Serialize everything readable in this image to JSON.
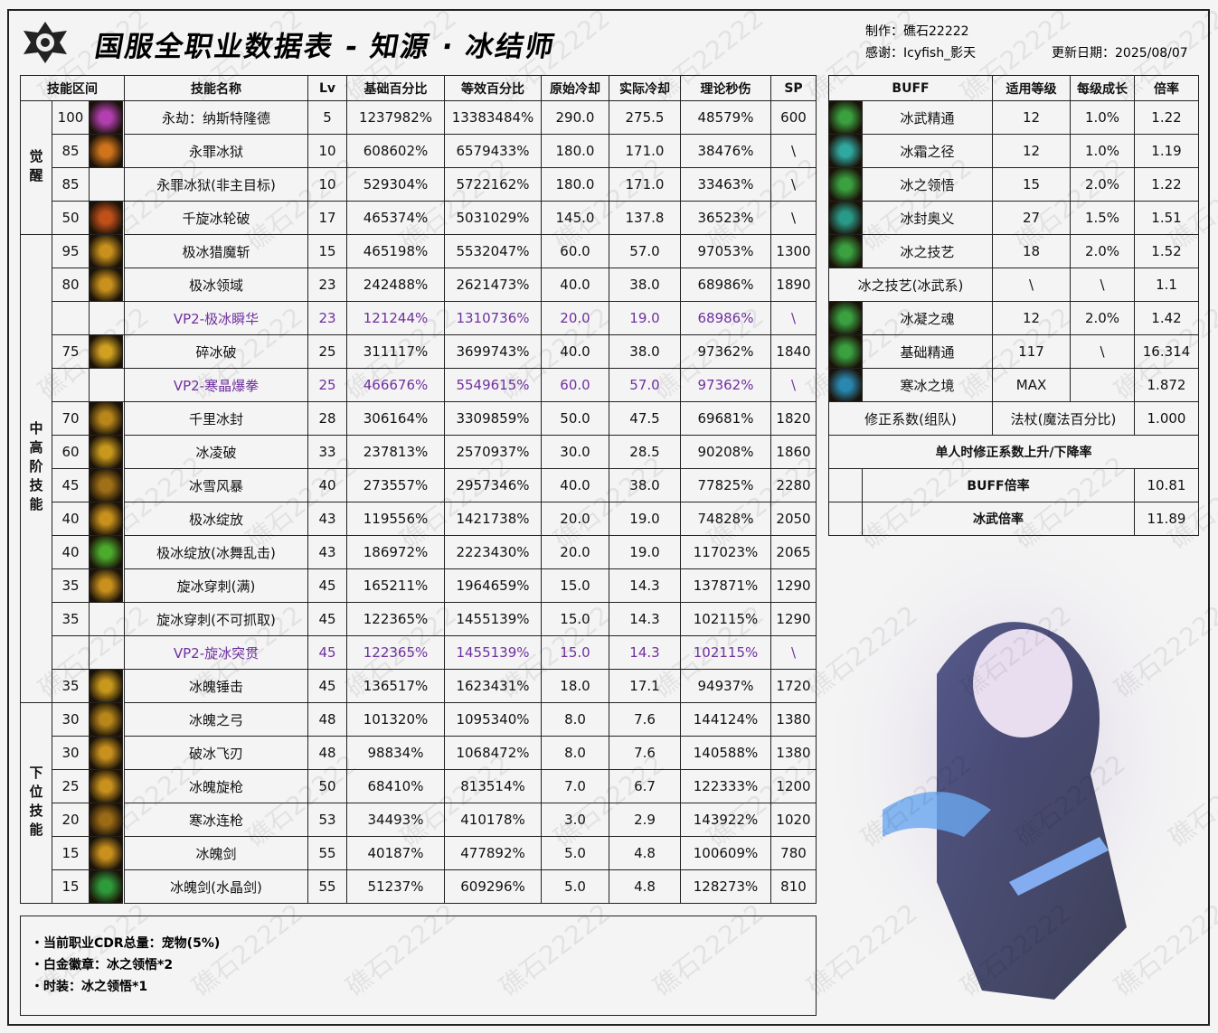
{
  "header": {
    "title": "国服全职业数据表 - 知源 · 冰结师",
    "author": "制作：礁石22222",
    "thanks": "感谢：Icyfish_影天",
    "date": "更新日期：2025/08/07"
  },
  "watermark": "礁石22222",
  "main_table": {
    "headers": [
      "技能区间",
      "技能名称",
      "Lv",
      "基础百分比",
      "等效百分比",
      "原始冷却",
      "实际冷却",
      "理论秒伤",
      "SP"
    ],
    "groups": [
      {
        "label": "觉醒",
        "rows": [
          {
            "cells": [
              "100",
              "永劫：纳斯特隆德",
              "5",
              "1237982%",
              "13383484%",
              "290.0",
              "275.5",
              "48579%",
              "600"
            ],
            "icon": "#b23fb0"
          },
          {
            "cells": [
              "85",
              "永罪冰狱",
              "10",
              "608602%",
              "6579433%",
              "180.0",
              "171.0",
              "38476%",
              "\\"
            ],
            "icon": "#d0741c"
          },
          {
            "cells": [
              "85",
              "永罪冰狱(非主目标)",
              "10",
              "529304%",
              "5722162%",
              "180.0",
              "171.0",
              "33463%",
              "\\"
            ]
          },
          {
            "cells": [
              "50",
              "千旋冰轮破",
              "17",
              "465374%",
              "5031029%",
              "145.0",
              "137.8",
              "36523%",
              "\\"
            ],
            "icon": "#c0501a"
          }
        ]
      },
      {
        "label": "中高阶技能",
        "rows": [
          {
            "cells": [
              "95",
              "极冰猎魔斩",
              "15",
              "465198%",
              "5532047%",
              "60.0",
              "57.0",
              "97053%",
              "1300"
            ],
            "icon": "#c8901c"
          },
          {
            "cells": [
              "80",
              "极冰领域",
              "23",
              "242488%",
              "2621473%",
              "40.0",
              "38.0",
              "68986%",
              "1890"
            ],
            "icon": "#c8901c"
          },
          {
            "cells": [
              null,
              "VP2-极冰瞬华",
              "23",
              "121244%",
              "1310736%",
              "20.0",
              "19.0",
              "68986%",
              "\\"
            ],
            "highlight": true
          },
          {
            "cells": [
              "75",
              "碎冰破",
              "25",
              "311117%",
              "3699743%",
              "40.0",
              "38.0",
              "97362%",
              "1840"
            ],
            "icon": "#d0a020"
          },
          {
            "cells": [
              null,
              "VP2-寒晶爆拳",
              "25",
              "466676%",
              "5549615%",
              "60.0",
              "57.0",
              "97362%",
              "\\"
            ],
            "highlight": true
          },
          {
            "cells": [
              "70",
              "千里冰封",
              "28",
              "306164%",
              "3309859%",
              "50.0",
              "47.5",
              "69681%",
              "1820"
            ],
            "icon": "#b8861a"
          },
          {
            "cells": [
              "60",
              "冰凌破",
              "33",
              "237813%",
              "2570937%",
              "30.0",
              "28.5",
              "90208%",
              "1860"
            ],
            "icon": "#c8981c"
          },
          {
            "cells": [
              "45",
              "冰雪风暴",
              "40",
              "273557%",
              "2957346%",
              "40.0",
              "38.0",
              "77825%",
              "2280"
            ],
            "icon": "#a07018"
          },
          {
            "cells": [
              "40",
              "极冰绽放",
              "43",
              "119556%",
              "1421738%",
              "20.0",
              "19.0",
              "74828%",
              "2050"
            ],
            "icon": "#c8901c"
          },
          {
            "cells": [
              "40",
              "极冰绽放(冰舞乱击)",
              "43",
              "186972%",
              "2223430%",
              "20.0",
              "19.0",
              "117023%",
              "2065"
            ],
            "icon": "#4caa2c"
          },
          {
            "cells": [
              "35",
              "旋冰穿刺(满)",
              "45",
              "165211%",
              "1964659%",
              "15.0",
              "14.3",
              "137871%",
              "1290"
            ],
            "icon": "#c8901c"
          },
          {
            "cells": [
              "35",
              "旋冰穿刺(不可抓取)",
              "45",
              "122365%",
              "1455139%",
              "15.0",
              "14.3",
              "102115%",
              "1290"
            ]
          },
          {
            "cells": [
              null,
              "VP2-旋冰突贯",
              "45",
              "122365%",
              "1455139%",
              "15.0",
              "14.3",
              "102115%",
              "\\"
            ],
            "highlight": true
          },
          {
            "cells": [
              "35",
              "冰魄锤击",
              "45",
              "136517%",
              "1623431%",
              "18.0",
              "17.1",
              "94937%",
              "1720"
            ],
            "icon": "#c8981c"
          }
        ]
      },
      {
        "label": "下位技能",
        "rows": [
          {
            "cells": [
              "30",
              "冰魄之弓",
              "48",
              "101320%",
              "1095340%",
              "8.0",
              "7.6",
              "144124%",
              "1380"
            ],
            "icon": "#b8861a"
          },
          {
            "cells": [
              "30",
              "破冰飞刃",
              "48",
              "98834%",
              "1068472%",
              "8.0",
              "7.6",
              "140588%",
              "1380"
            ],
            "icon": "#c8901c"
          },
          {
            "cells": [
              "25",
              "冰魄旋枪",
              "50",
              "68410%",
              "813514%",
              "7.0",
              "6.7",
              "122333%",
              "1200"
            ],
            "icon": "#c8901c"
          },
          {
            "cells": [
              "20",
              "寒冰连枪",
              "53",
              "34493%",
              "410178%",
              "3.0",
              "2.9",
              "143922%",
              "1020"
            ],
            "icon": "#9a6a16"
          },
          {
            "cells": [
              "15",
              "冰魄剑",
              "55",
              "40187%",
              "477892%",
              "5.0",
              "4.8",
              "100609%",
              "780"
            ],
            "icon": "#c8901c"
          },
          {
            "cells": [
              "15",
              "冰魄剑(水晶剑)",
              "55",
              "51237%",
              "609296%",
              "5.0",
              "4.8",
              "128273%",
              "810"
            ],
            "icon": "#2f9a3a"
          }
        ]
      }
    ]
  },
  "buff_table": {
    "headers": [
      "BUFF",
      "适用等级",
      "每级成长",
      "倍率"
    ],
    "rows": [
      {
        "cells": [
          "冰武精通",
          "12",
          "1.0%",
          "1.22"
        ],
        "icon": "#3aa040"
      },
      {
        "cells": [
          "冰霜之径",
          "12",
          "1.0%",
          "1.19"
        ],
        "icon": "#30a8a0"
      },
      {
        "cells": [
          "冰之领悟",
          "15",
          "2.0%",
          "1.22"
        ],
        "icon": "#3aa040"
      },
      {
        "cells": [
          "冰封奥义",
          "27",
          "1.5%",
          "1.51"
        ],
        "icon": "#2a9a88"
      },
      {
        "cells": [
          "冰之技艺",
          "18",
          "2.0%",
          "1.52"
        ],
        "icon": "#3aa040"
      },
      {
        "cells": [
          "冰之技艺(冰武系)",
          "\\",
          "\\",
          "1.1"
        ]
      },
      {
        "cells": [
          "冰凝之魂",
          "12",
          "2.0%",
          "1.42"
        ],
        "icon": "#3aa040"
      },
      {
        "cells": [
          "基础精通",
          "117",
          "\\",
          "16.314"
        ],
        "icon": "#3aa040"
      },
      {
        "cells": [
          "寒冰之境",
          "MAX",
          null,
          "1.872"
        ],
        "icon": "#2a88b0"
      }
    ],
    "summary": [
      {
        "cells": [
          "修正系数(组队)",
          "法杖(魔法百分比)",
          "1.000"
        ]
      },
      {
        "cells": [
          "单人时修正系数上升/下降率"
        ]
      },
      {
        "cells": [
          "BUFF倍率",
          "10.81"
        ]
      },
      {
        "cells": [
          "冰武倍率",
          "11.89"
        ]
      }
    ]
  },
  "notes": [
    "・当前职业CDR总量：宠物(5%)",
    "・白金徽章：冰之领悟*2",
    "・时装：冰之领悟*1"
  ]
}
